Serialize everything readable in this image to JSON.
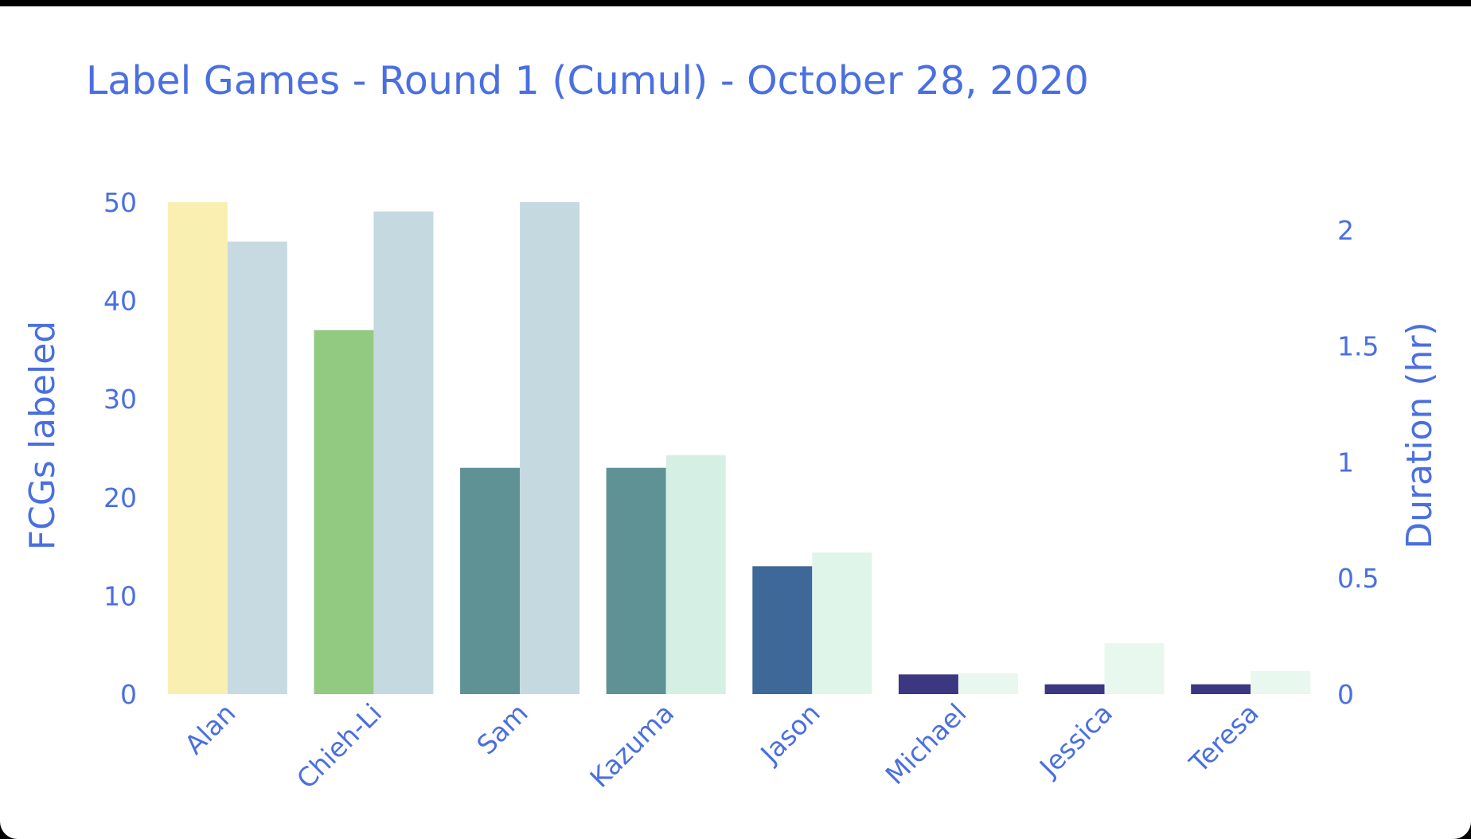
{
  "chart_data": {
    "type": "bar",
    "title": "Label Games - Round 1 (Cumul) - October 28, 2020",
    "xlabel": "",
    "ylabel": "FCGs labeled",
    "y2label": "Duration (hr)",
    "categories": [
      "Alan",
      "Chieh-Li",
      "Sam",
      "Kazuma",
      "Jason",
      "Michael",
      "Jessica",
      "Teresa"
    ],
    "ylim": [
      0,
      50
    ],
    "y2lim": [
      0,
      2.12
    ],
    "yticks": [
      "0",
      "10",
      "20",
      "30",
      "40",
      "50"
    ],
    "y2ticks": [
      "0",
      "0.5",
      "1",
      "1.5",
      "2"
    ],
    "grid": false,
    "series": [
      {
        "axis": "left",
        "values": [
          50,
          37,
          23,
          23,
          13,
          2,
          1,
          1
        ],
        "colors": [
          "#f9efb0",
          "#92ca82",
          "#5e9294",
          "#5e9294",
          "#3d6898",
          "#3b3780",
          "#3b3780",
          "#3b3780"
        ]
      },
      {
        "axis": "right",
        "values": [
          1.95,
          2.08,
          2.12,
          1.03,
          0.61,
          0.09,
          0.22,
          0.1
        ],
        "colors": [
          "#c8dae1",
          "#c5d9e0",
          "#c5d9e0",
          "#d5efe4",
          "#e0f5ea",
          "#e8f8ee",
          "#e8f8ee",
          "#e8f8ee"
        ]
      }
    ]
  }
}
